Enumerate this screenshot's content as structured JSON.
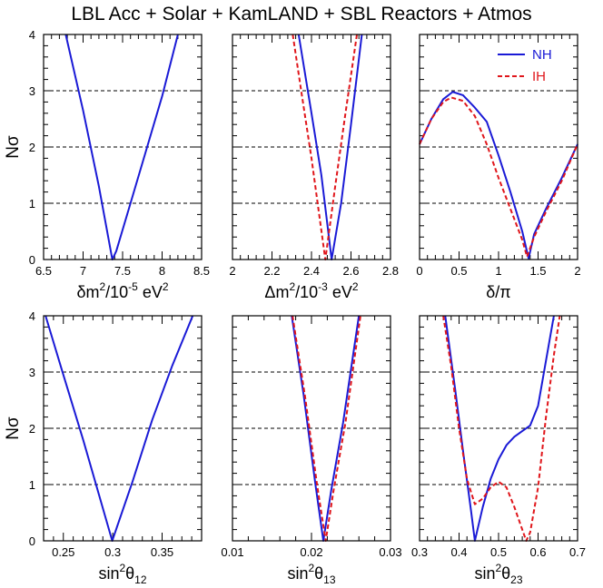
{
  "title": "LBL Acc + Solar + KamLAND + SBL Reactors + Atmos",
  "ylabel_main": "N",
  "ylabel_sub": "σ",
  "colors": {
    "NH": "#1a1ad6",
    "IH": "#e0161b",
    "axis": "#000000",
    "grid": "#000000"
  },
  "chart_data": [
    {
      "type": "line",
      "panel": "dm2",
      "xlabel_parts": [
        "δm",
        "2",
        "/10",
        "-5",
        " eV",
        "2"
      ],
      "xlim": [
        6.5,
        8.5
      ],
      "ylim": [
        0,
        4
      ],
      "xticks": [
        6.5,
        7,
        7.5,
        8,
        8.5
      ],
      "xticklabels": [
        "6.5",
        "7",
        "7.5",
        "8",
        "8.5"
      ],
      "yticks": [
        0,
        1,
        2,
        3,
        4
      ],
      "yticklabels": [
        "0",
        "1",
        "2",
        "3",
        "4"
      ],
      "gridlines_y": [
        1,
        2,
        3
      ],
      "legend": [],
      "series": [
        {
          "name": "NH",
          "style": "solid",
          "x": [
            6.78,
            7.0,
            7.2,
            7.37,
            7.42,
            7.6,
            7.8,
            8.0,
            8.2
          ],
          "y": [
            4.0,
            2.65,
            1.3,
            0.0,
            0.15,
            1.0,
            1.95,
            2.9,
            4.0
          ]
        }
      ]
    },
    {
      "type": "line",
      "panel": "Dm2",
      "xlabel_parts": [
        "Δm",
        "2",
        "/10",
        "-3",
        " eV",
        "2"
      ],
      "xlim": [
        2.0,
        2.8
      ],
      "ylim": [
        0,
        4
      ],
      "xticks": [
        2.0,
        2.2,
        2.4,
        2.6,
        2.8
      ],
      "xticklabels": [
        "2",
        "2.2",
        "2.4",
        "2.6",
        "2.8"
      ],
      "yticks": [
        0,
        1,
        2,
        3,
        4
      ],
      "yticklabels": [],
      "gridlines_y": [
        1,
        2,
        3
      ],
      "legend": [],
      "series": [
        {
          "name": "NH",
          "style": "solid",
          "x": [
            2.335,
            2.4,
            2.45,
            2.502,
            2.55,
            2.6,
            2.655
          ],
          "y": [
            4.0,
            2.6,
            1.5,
            0.0,
            1.0,
            2.4,
            4.0
          ]
        },
        {
          "name": "IH",
          "style": "dashed",
          "x": [
            2.305,
            2.35,
            2.4,
            2.47,
            2.52,
            2.57,
            2.63
          ],
          "y": [
            4.0,
            2.95,
            1.8,
            0.0,
            1.3,
            2.55,
            4.0
          ]
        }
      ]
    },
    {
      "type": "line",
      "panel": "delta",
      "xlabel_parts": [
        "δ/π"
      ],
      "xlim": [
        0,
        2
      ],
      "ylim": [
        0,
        4
      ],
      "xticks": [
        0,
        0.5,
        1.0,
        1.5,
        2.0
      ],
      "xticklabels": [
        "0",
        "0.5",
        "1",
        "1.5",
        "2"
      ],
      "yticks": [
        0,
        1,
        2,
        3,
        4
      ],
      "yticklabels": [],
      "gridlines_y": [
        1,
        2,
        3
      ],
      "legend": [
        "NH",
        "IH"
      ],
      "series": [
        {
          "name": "NH",
          "style": "solid",
          "x": [
            0,
            0.15,
            0.3,
            0.42,
            0.55,
            0.7,
            0.85,
            1.0,
            1.15,
            1.3,
            1.38,
            1.45,
            1.6,
            1.8,
            2.0
          ],
          "y": [
            2.05,
            2.5,
            2.85,
            2.98,
            2.92,
            2.7,
            2.45,
            1.85,
            1.2,
            0.5,
            0.02,
            0.45,
            0.9,
            1.45,
            2.05
          ]
        },
        {
          "name": "IH",
          "style": "dashed",
          "x": [
            0,
            0.15,
            0.3,
            0.4,
            0.55,
            0.7,
            0.85,
            1.0,
            1.15,
            1.3,
            1.36,
            1.45,
            1.6,
            1.8,
            2.0
          ],
          "y": [
            2.05,
            2.5,
            2.8,
            2.88,
            2.82,
            2.55,
            2.05,
            1.45,
            0.9,
            0.35,
            0.05,
            0.4,
            0.85,
            1.4,
            2.05
          ]
        }
      ]
    },
    {
      "type": "line",
      "panel": "s12",
      "xlabel_parts": [
        "sin",
        "2",
        "θ",
        "12"
      ],
      "xlim": [
        0.23,
        0.39
      ],
      "ylim": [
        0,
        4
      ],
      "xticks": [
        0.25,
        0.3,
        0.35
      ],
      "xticklabels": [
        "0.25",
        "0.3",
        "0.35"
      ],
      "yticks": [
        0,
        1,
        2,
        3,
        4
      ],
      "yticklabels": [
        "0",
        "1",
        "2",
        "3",
        "4"
      ],
      "gridlines_y": [
        1,
        2,
        3
      ],
      "legend": [],
      "series": [
        {
          "name": "NH",
          "style": "solid",
          "x": [
            0.232,
            0.25,
            0.27,
            0.2995,
            0.32,
            0.34,
            0.36,
            0.381
          ],
          "y": [
            4.0,
            2.95,
            1.8,
            0.0,
            1.05,
            2.15,
            3.1,
            4.0
          ]
        }
      ]
    },
    {
      "type": "line",
      "panel": "s13",
      "xlabel_parts": [
        "sin",
        "2",
        "θ",
        "13"
      ],
      "xlim": [
        0.01,
        0.03
      ],
      "ylim": [
        0,
        4
      ],
      "xticks": [
        0.01,
        0.02,
        0.03
      ],
      "xticklabels": [
        "0.01",
        "0.02",
        "0.03"
      ],
      "yticks": [
        0,
        1,
        2,
        3,
        4
      ],
      "yticklabels": [],
      "gridlines_y": [
        1,
        2,
        3
      ],
      "legend": [],
      "series": [
        {
          "name": "NH",
          "style": "solid",
          "x": [
            0.0175,
            0.019,
            0.0205,
            0.0215,
            0.0225,
            0.024,
            0.026
          ],
          "y": [
            4.0,
            2.6,
            1.0,
            0.0,
            0.9,
            2.1,
            4.0
          ]
        },
        {
          "name": "IH",
          "style": "dashed",
          "x": [
            0.0176,
            0.0192,
            0.0207,
            0.0218,
            0.0228,
            0.0243,
            0.0262
          ],
          "y": [
            4.0,
            2.55,
            1.0,
            0.0,
            0.9,
            2.1,
            4.0
          ]
        }
      ]
    },
    {
      "type": "line",
      "panel": "s23",
      "xlabel_parts": [
        "sin",
        "2",
        "θ",
        "23"
      ],
      "xlim": [
        0.3,
        0.7
      ],
      "ylim": [
        0,
        4
      ],
      "xticks": [
        0.3,
        0.4,
        0.5,
        0.6,
        0.7
      ],
      "xticklabels": [
        "0.3",
        "0.4",
        "0.5",
        "0.6",
        "0.7"
      ],
      "yticks": [
        0,
        1,
        2,
        3,
        4
      ],
      "yticklabels": [],
      "gridlines_y": [
        1,
        2,
        3
      ],
      "legend": [],
      "series": [
        {
          "name": "NH",
          "style": "solid",
          "x": [
            0.365,
            0.39,
            0.41,
            0.43,
            0.44,
            0.46,
            0.48,
            0.5,
            0.52,
            0.54,
            0.56,
            0.58,
            0.6,
            0.62,
            0.64
          ],
          "y": [
            4.0,
            2.7,
            1.6,
            0.55,
            0.0,
            0.6,
            1.1,
            1.45,
            1.7,
            1.85,
            1.95,
            2.05,
            2.4,
            3.2,
            4.0
          ]
        },
        {
          "name": "IH",
          "style": "dashed",
          "x": [
            0.36,
            0.38,
            0.4,
            0.42,
            0.44,
            0.46,
            0.48,
            0.5,
            0.52,
            0.54,
            0.56,
            0.57,
            0.58,
            0.6,
            0.62,
            0.64,
            0.655
          ],
          "y": [
            4.0,
            3.1,
            2.0,
            1.1,
            0.65,
            0.75,
            0.95,
            1.05,
            0.95,
            0.6,
            0.2,
            0.0,
            0.15,
            0.95,
            2.2,
            3.3,
            4.0
          ]
        }
      ]
    }
  ]
}
